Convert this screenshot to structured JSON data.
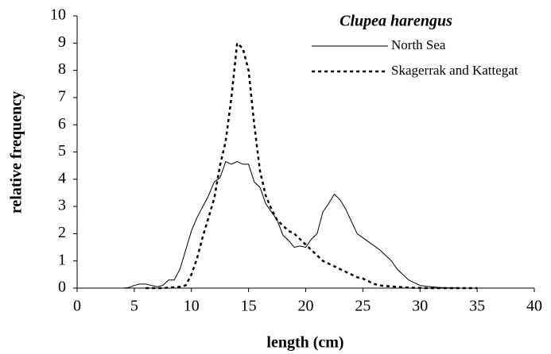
{
  "chart_data": {
    "type": "line",
    "xlabel": "length (cm)",
    "ylabel": "relative frequency",
    "legend_title": "Clupea harengus",
    "legend": "upper right",
    "grid": false,
    "xlim": [
      0,
      40
    ],
    "xticks": [
      0,
      5,
      10,
      15,
      20,
      25,
      30,
      35,
      40
    ],
    "ylim": [
      0,
      10
    ],
    "yticks": [
      0,
      1,
      2,
      3,
      4,
      5,
      6,
      7,
      8,
      9,
      10
    ],
    "x": [
      4,
      4.5,
      5,
      5.5,
      6,
      6.5,
      7,
      7.5,
      8,
      8.5,
      9,
      9.5,
      10,
      10.5,
      11,
      11.5,
      12,
      12.5,
      13,
      13.5,
      14,
      14.5,
      15,
      15.5,
      16,
      16.5,
      17,
      17.5,
      18,
      18.5,
      19,
      19.5,
      20,
      20.5,
      21,
      21.5,
      22,
      22.5,
      23,
      23.5,
      24,
      24.5,
      25,
      25.5,
      26,
      26.5,
      27,
      27.5,
      28,
      28.5,
      29,
      29.5,
      30,
      30.5,
      31,
      31.5,
      32,
      32.5,
      33,
      33.5,
      34,
      34.5,
      35
    ],
    "series": [
      {
        "name": "North Sea",
        "color": "#000000",
        "dash": "solid",
        "values": [
          0,
          0.02,
          0.1,
          0.15,
          0.15,
          0.1,
          0.05,
          0.1,
          0.3,
          0.3,
          0.7,
          1.4,
          2.1,
          2.6,
          3.0,
          3.4,
          3.9,
          4.05,
          4.65,
          4.55,
          4.65,
          4.55,
          4.55,
          3.9,
          3.7,
          3.1,
          2.8,
          2.5,
          1.95,
          1.75,
          1.5,
          1.55,
          1.5,
          1.8,
          2.0,
          2.8,
          3.1,
          3.45,
          3.25,
          2.9,
          2.45,
          2.0,
          1.85,
          1.7,
          1.55,
          1.4,
          1.2,
          1.0,
          0.7,
          0.5,
          0.3,
          0.2,
          0.1,
          0.07,
          0.05,
          0.03,
          0.02,
          0.01,
          0.01,
          0,
          0,
          0,
          0
        ]
      },
      {
        "name": "Skagerrak and Kattegat",
        "color": "#000000",
        "dash": "dotted",
        "values": [
          null,
          null,
          null,
          null,
          0,
          0,
          0,
          0,
          0.02,
          0.03,
          0.05,
          0.1,
          0.5,
          1.1,
          1.9,
          2.6,
          3.3,
          4.5,
          5.4,
          7.0,
          9.0,
          8.8,
          8.0,
          6.0,
          4.3,
          3.4,
          2.9,
          2.5,
          2.3,
          2.1,
          2.0,
          1.8,
          1.6,
          1.4,
          1.2,
          1.0,
          0.9,
          0.8,
          0.7,
          0.6,
          0.5,
          0.4,
          0.35,
          0.25,
          0.15,
          0.1,
          0.08,
          0.06,
          0.05,
          0.03,
          0.02,
          0.01,
          0.01,
          0,
          0,
          0,
          0,
          0,
          0,
          0,
          0,
          0,
          0
        ]
      }
    ]
  }
}
